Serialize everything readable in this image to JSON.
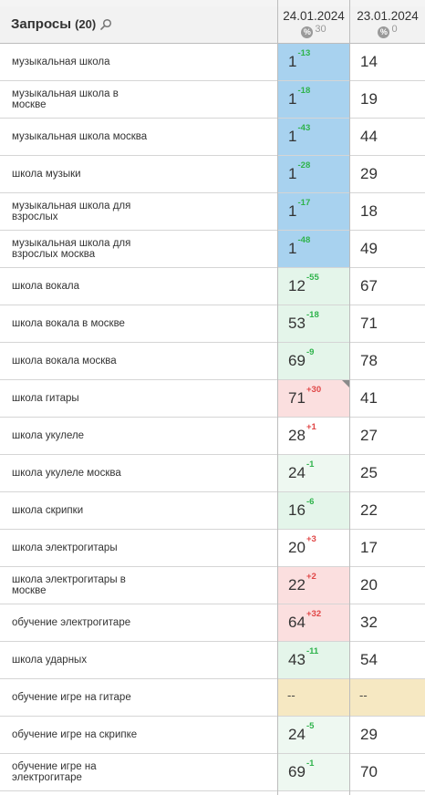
{
  "header": {
    "title": "Запросы",
    "count": "(20)",
    "dates": [
      {
        "date": "24.01.2024",
        "value": "30"
      },
      {
        "date": "23.01.2024",
        "value": "0"
      }
    ]
  },
  "rows": [
    {
      "query": "музыкальная школа",
      "pos1": "1",
      "delta": "-13",
      "dir": "up",
      "pos2": "14",
      "bg": "top"
    },
    {
      "query": "музыкальная школа в москве",
      "pos1": "1",
      "delta": "-18",
      "dir": "up",
      "pos2": "19",
      "bg": "top"
    },
    {
      "query": "музыкальная школа москва",
      "pos1": "1",
      "delta": "-43",
      "dir": "up",
      "pos2": "44",
      "bg": "top"
    },
    {
      "query": "школа музыки",
      "pos1": "1",
      "delta": "-28",
      "dir": "up",
      "pos2": "29",
      "bg": "top"
    },
    {
      "query": "музыкальная школа для взрослых",
      "pos1": "1",
      "delta": "-17",
      "dir": "up",
      "pos2": "18",
      "bg": "top"
    },
    {
      "query": "музыкальная школа для взрослых москва",
      "pos1": "1",
      "delta": "-48",
      "dir": "up",
      "pos2": "49",
      "bg": "top"
    },
    {
      "query": "школа вокала",
      "pos1": "12",
      "delta": "-55",
      "dir": "up",
      "pos2": "67",
      "bg": "good"
    },
    {
      "query": "школа вокала в москве",
      "pos1": "53",
      "delta": "-18",
      "dir": "up",
      "pos2": "71",
      "bg": "good"
    },
    {
      "query": "школа вокала москва",
      "pos1": "69",
      "delta": "-9",
      "dir": "up",
      "pos2": "78",
      "bg": "good"
    },
    {
      "query": "школа гитары",
      "pos1": "71",
      "delta": "+30",
      "dir": "down",
      "pos2": "41",
      "bg": "bad",
      "corner": true
    },
    {
      "query": "школа укулеле",
      "pos1": "28",
      "delta": "+1",
      "dir": "down",
      "pos2": "27",
      "bg": "none"
    },
    {
      "query": "школа укулеле москва",
      "pos1": "24",
      "delta": "-1",
      "dir": "up",
      "pos2": "25",
      "bg": "faint"
    },
    {
      "query": "школа скрипки",
      "pos1": "16",
      "delta": "-6",
      "dir": "up",
      "pos2": "22",
      "bg": "good"
    },
    {
      "query": "школа электрогитары",
      "pos1": "20",
      "delta": "+3",
      "dir": "down",
      "pos2": "17",
      "bg": "none"
    },
    {
      "query": "школа электрогитары в москве",
      "pos1": "22",
      "delta": "+2",
      "dir": "down",
      "pos2": "20",
      "bg": "bad"
    },
    {
      "query": "обучение электрогитаре",
      "pos1": "64",
      "delta": "+32",
      "dir": "down",
      "pos2": "32",
      "bg": "bad"
    },
    {
      "query": "школа ударных",
      "pos1": "43",
      "delta": "-11",
      "dir": "up",
      "pos2": "54",
      "bg": "good"
    },
    {
      "query": "обучение игре на гитаре",
      "pos1": "--",
      "delta": "",
      "dir": "",
      "pos2": "--",
      "bg": "na"
    },
    {
      "query": "обучение игре на скрипке",
      "pos1": "24",
      "delta": "-5",
      "dir": "up",
      "pos2": "29",
      "bg": "faint"
    },
    {
      "query": "обучение игре на электрогитаре",
      "pos1": "69",
      "delta": "-1",
      "dir": "up",
      "pos2": "70",
      "bg": "faint"
    }
  ],
  "colors": {
    "top": "#a8d2ef",
    "good": "#e4f5ea",
    "bad": "#fbdfdf",
    "na": "#f6e8c2",
    "delta_up": "#2fb34c",
    "delta_down": "#e04646"
  }
}
